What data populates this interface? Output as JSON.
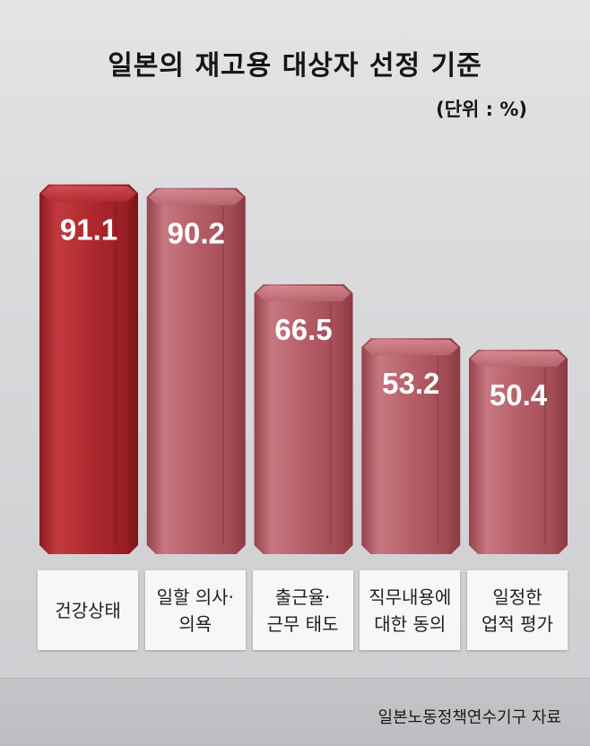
{
  "colors": {
    "highlight_bar": "#b52a2f",
    "other_bars": "#b8606a"
  },
  "chart_data": {
    "type": "bar",
    "title": "일본의 재고용 대상자 선정 기준",
    "unit": "(단위 : %)",
    "categories": [
      "건강상태",
      "일할 의사·\n의욕",
      "출근율·\n근무 태도",
      "직무내용에\n대한 동의",
      "일정한\n업적 평가"
    ],
    "values": [
      91.1,
      90.2,
      66.5,
      53.2,
      50.4
    ],
    "value_labels": [
      "91.1",
      "90.2",
      "66.5",
      "53.2",
      "50.4"
    ],
    "highlight_index": 0,
    "source": "일본노동정책연수기구 자료"
  }
}
